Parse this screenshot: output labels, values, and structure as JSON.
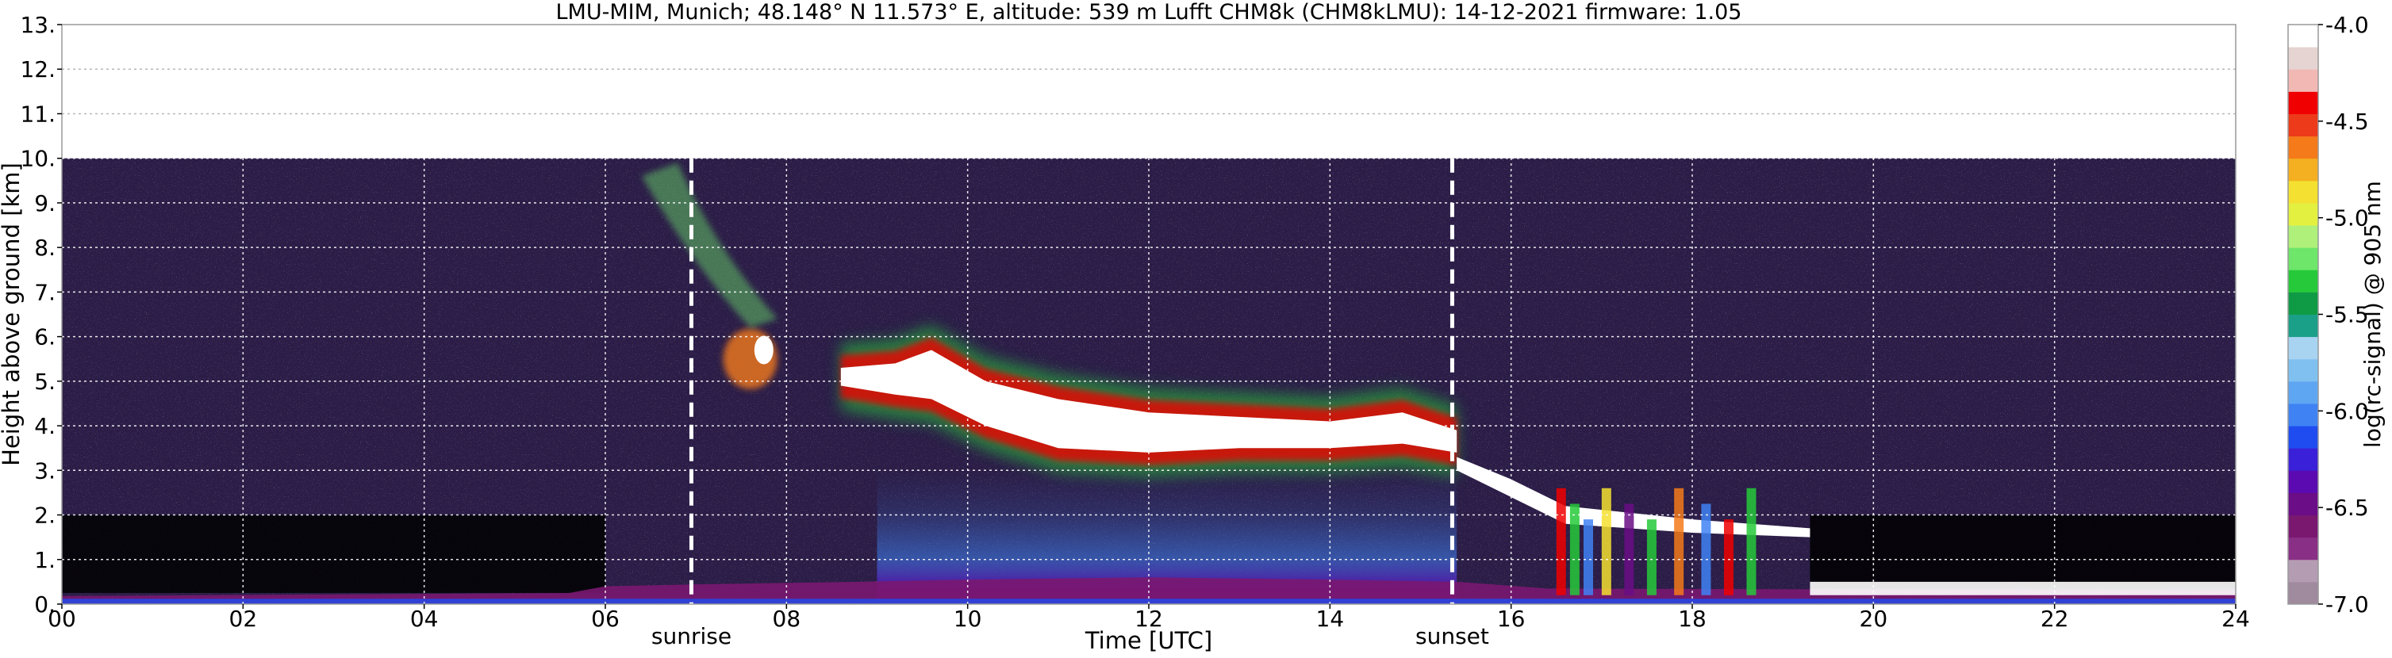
{
  "chart_data": {
    "type": "heatmap",
    "title": "LMU-MIM, Munich; 48.148° N 11.573° E, altitude: 539 m    Lufft CHM8k (CHM8kLMU): 14-12-2021    firmware: 1.05",
    "xlabel": "Time [UTC]",
    "ylabel": "Height above ground [km]",
    "xlim": [
      0,
      24
    ],
    "ylim": [
      0,
      13
    ],
    "x_ticks": [
      "00",
      "02",
      "04",
      "06",
      "08",
      "10",
      "12",
      "14",
      "16",
      "18",
      "20",
      "22",
      "24"
    ],
    "y_ticks": [
      "0.",
      "1.",
      "2.",
      "3.",
      "4.",
      "5.",
      "6.",
      "7.",
      "8.",
      "9.",
      "10.",
      "11.",
      "12.",
      "13."
    ],
    "grid": true,
    "data_top_km": 10,
    "events": [
      {
        "name": "sunrise",
        "time_h": 6.95
      },
      {
        "name": "sunset",
        "time_h": 15.35
      }
    ],
    "colorbar": {
      "label": "log(rc-signal) @ 905 nm",
      "range": [
        -7.0,
        -4.0
      ],
      "ticks": [
        "-4.0",
        "-4.5",
        "-5.0",
        "-5.5",
        "-6.0",
        "-6.5",
        "-7.0"
      ],
      "colors": [
        "#a08a9e",
        "#b49cb2",
        "#8a2f86",
        "#7a1870",
        "#6a0d86",
        "#5a0ab0",
        "#3a20d8",
        "#1f4cf0",
        "#3f82f4",
        "#5fa6f2",
        "#80c0f0",
        "#a8d4f2",
        "#1aa088",
        "#0f9a46",
        "#26c93a",
        "#6de66a",
        "#aef07a",
        "#e4f040",
        "#f4e030",
        "#f4b020",
        "#f47a1a",
        "#ec3a1a",
        "#f00000",
        "#f2b8b4",
        "#e6d4d2",
        "#ffffff"
      ]
    },
    "features": [
      {
        "name": "boundary layer",
        "t": [
          0,
          24
        ],
        "z": [
          0.0,
          0.4
        ]
      },
      {
        "name": "cloud layer",
        "t": [
          7.0,
          15.4
        ],
        "z": [
          2.9,
          6.2
        ]
      },
      {
        "name": "low cloud and precipitation",
        "t": [
          15.4,
          19.3
        ],
        "z": [
          0.0,
          3.6
        ]
      }
    ]
  }
}
